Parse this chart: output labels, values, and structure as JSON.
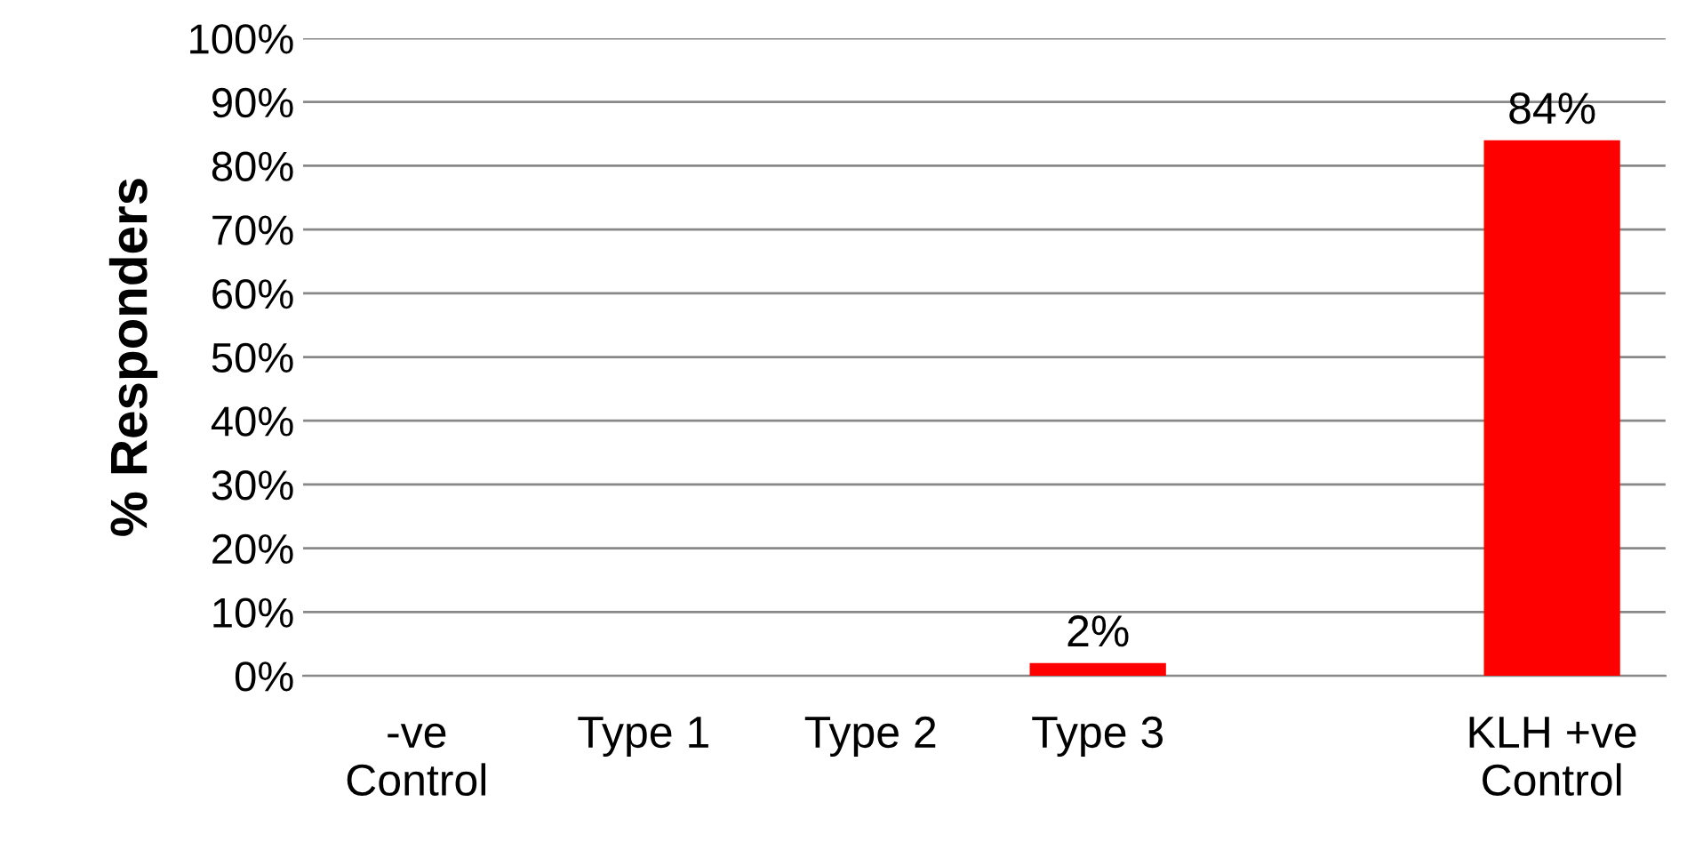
{
  "chart_data": {
    "type": "bar",
    "ylabel": "% Responders",
    "categories": [
      "-ve\nControl",
      "Type 1",
      "Type 2",
      "Type 3",
      null,
      "KLH +ve\nControl"
    ],
    "values": [
      0,
      0,
      0,
      2,
      0,
      84
    ],
    "color": "#ff0000",
    "value_labels": [
      null,
      null,
      null,
      "2%",
      null,
      "84%"
    ],
    "ylim": [
      0,
      100
    ],
    "yticks": [
      {
        "value": 0,
        "label": "0%"
      },
      {
        "value": 10,
        "label": "10%"
      },
      {
        "value": 20,
        "label": "20%"
      },
      {
        "value": 30,
        "label": "30%"
      },
      {
        "value": 40,
        "label": "40%"
      },
      {
        "value": 50,
        "label": "50%"
      },
      {
        "value": 60,
        "label": "60%"
      },
      {
        "value": 70,
        "label": "70%"
      },
      {
        "value": 80,
        "label": "80%"
      },
      {
        "value": 90,
        "label": "90%"
      },
      {
        "value": 100,
        "label": "100%"
      }
    ],
    "grid": "y",
    "legend": false
  }
}
